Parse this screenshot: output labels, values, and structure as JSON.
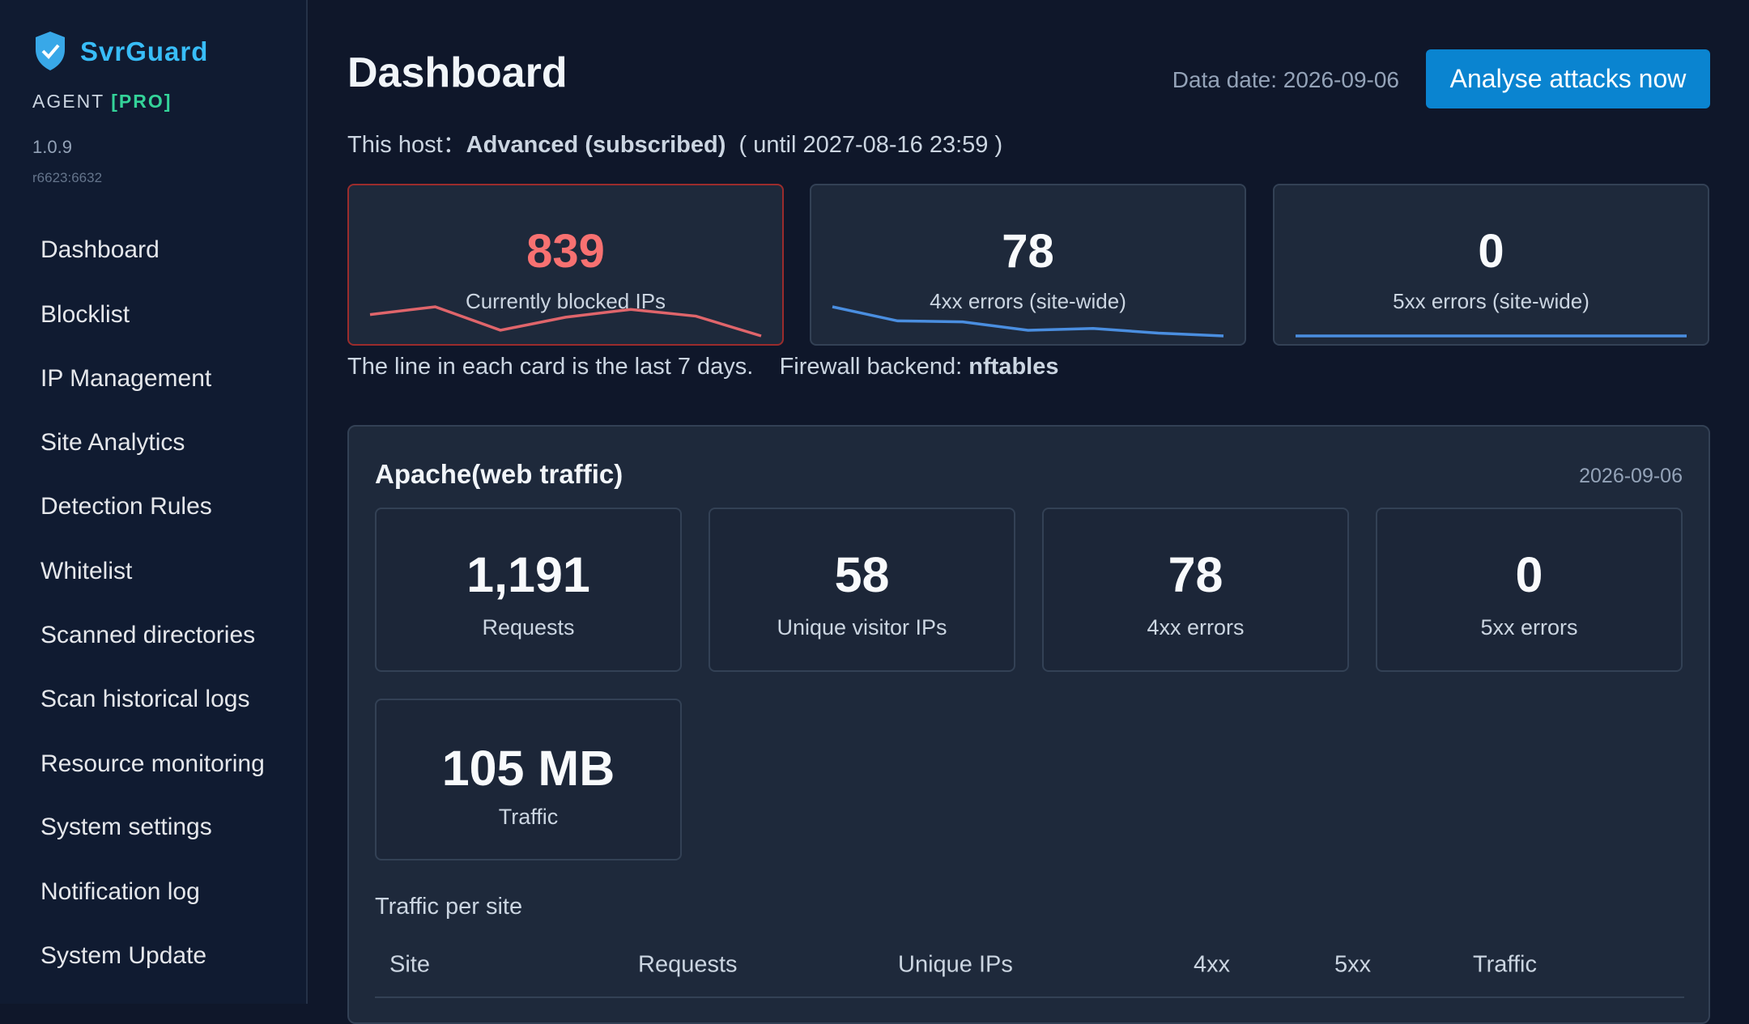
{
  "sidebar": {
    "brand": "SvrGuard",
    "agent": "AGENT",
    "plan": "[PRO]",
    "version": "1.0.9",
    "build": "r6623:6632",
    "nav": [
      "Dashboard",
      "Blocklist",
      "IP Management",
      "Site Analytics",
      "Detection Rules",
      "Whitelist",
      "Scanned directories",
      "Scan historical logs",
      "Resource monitoring",
      "System settings",
      "Notification log",
      "System Update"
    ]
  },
  "header": {
    "title": "Dashboard",
    "data_date": "Data date: 2026-09-06",
    "button": "Analyse attacks now"
  },
  "host": {
    "prefix": "This host：",
    "plan": "Advanced (subscribed)",
    "until": "( until 2027-08-16 23:59 )"
  },
  "cards": [
    {
      "value": "839",
      "label": "Currently blocked IPs",
      "color": "#e0656b",
      "trend": [
        880,
        895,
        850,
        875,
        890,
        877,
        839
      ]
    },
    {
      "value": "78",
      "label": "4xx errors (site-wide)",
      "color": "#4a8ee0",
      "trend": [
        140,
        110,
        108,
        90,
        94,
        84,
        78
      ]
    },
    {
      "value": "0",
      "label": "5xx errors (site-wide)",
      "color": "#4a8ee0",
      "trend": [
        0,
        0,
        0,
        0,
        0,
        0,
        0
      ]
    }
  ],
  "notes": {
    "line_note": "The line in each card is the last 7 days.",
    "firewall_label": "Firewall backend:",
    "firewall": "nftables"
  },
  "panel": {
    "title": "Apache(web traffic)",
    "date": "2026-09-06",
    "stats": [
      {
        "value": "1,191",
        "label": "Requests"
      },
      {
        "value": "58",
        "label": "Unique visitor IPs"
      },
      {
        "value": "78",
        "label": "4xx errors"
      },
      {
        "value": "0",
        "label": "5xx errors"
      },
      {
        "value": "105 MB",
        "label": "Traffic"
      }
    ],
    "traffic_title": "Traffic per site",
    "columns": [
      "Site",
      "Requests",
      "Unique IPs",
      "4xx",
      "5xx",
      "Traffic"
    ]
  }
}
